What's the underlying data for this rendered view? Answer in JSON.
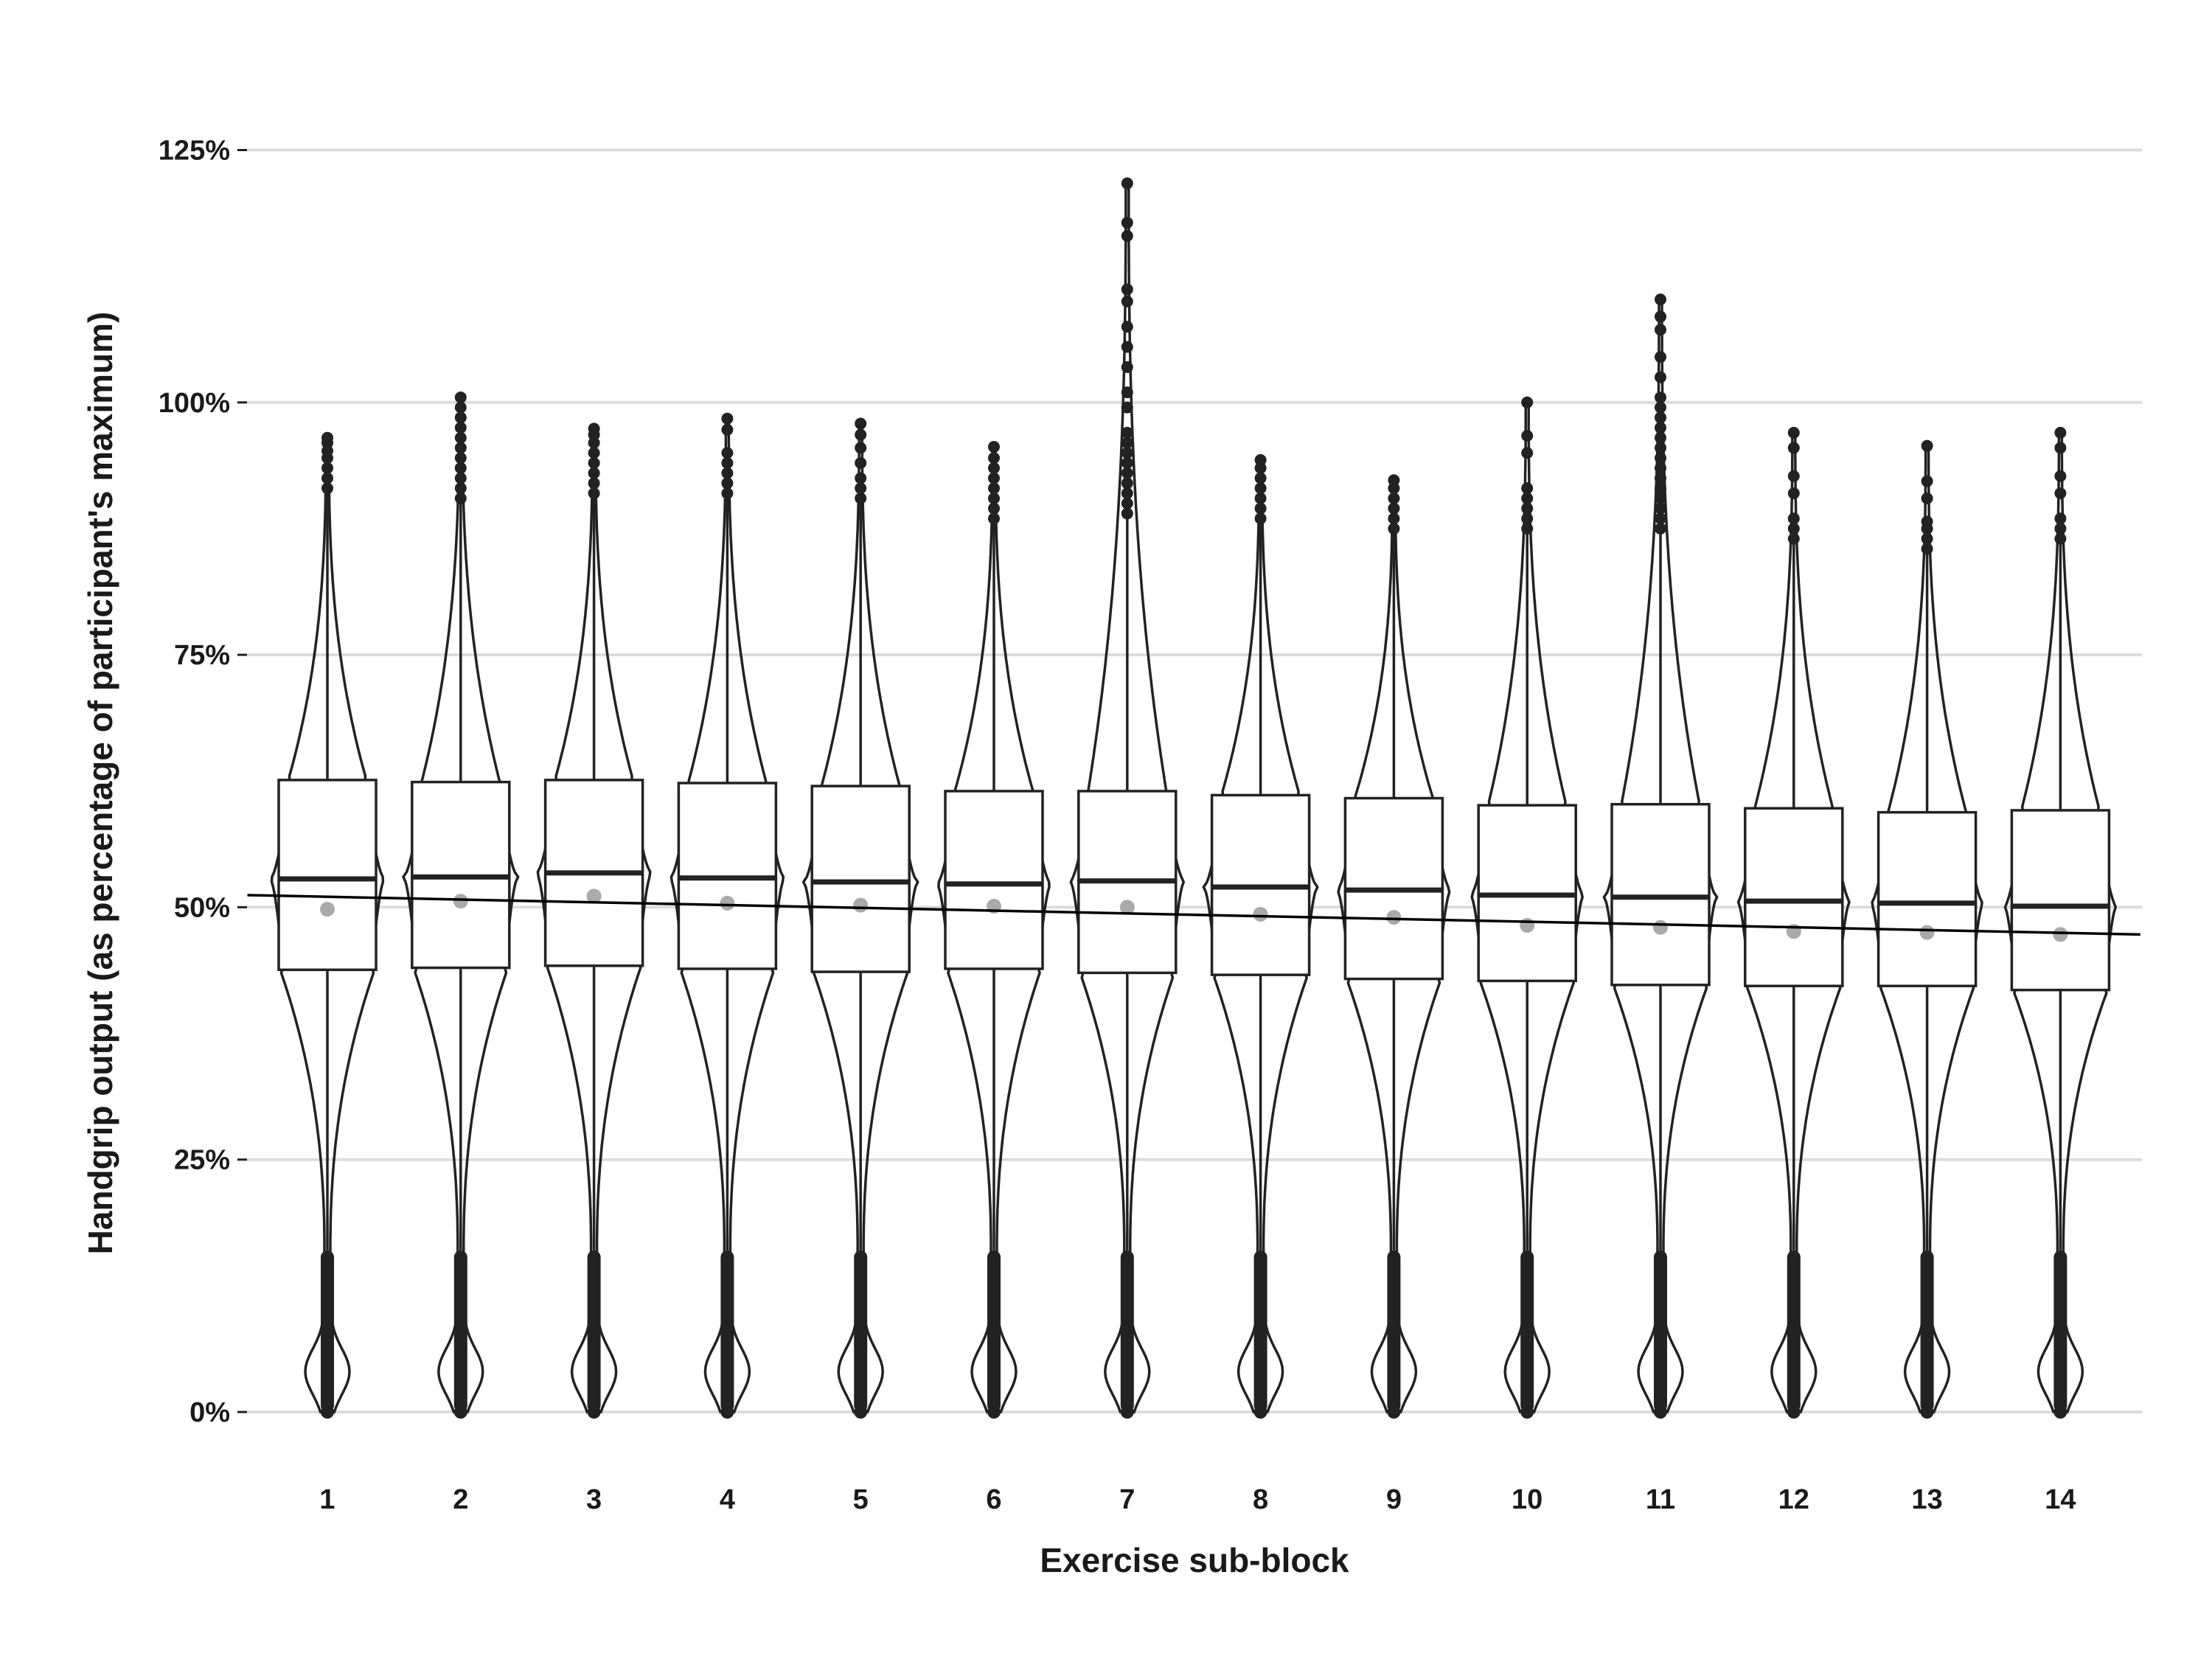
{
  "chart_data": {
    "type": "violin-box",
    "title": "",
    "xlabel": "Exercise sub-block",
    "ylabel": "Handgrip output (as percentage of participant's maximum)",
    "ylim": [
      -4,
      130
    ],
    "y_ticks": [
      {
        "value": 0,
        "label": "0%"
      },
      {
        "value": 25,
        "label": "25%"
      },
      {
        "value": 50,
        "label": "50%"
      },
      {
        "value": 75,
        "label": "75%"
      },
      {
        "value": 100,
        "label": "100%"
      },
      {
        "value": 125,
        "label": "125%"
      }
    ],
    "grid": "horizontal",
    "categories": [
      "1",
      "2",
      "3",
      "4",
      "5",
      "6",
      "7",
      "8",
      "9",
      "10",
      "11",
      "12",
      "13",
      "14"
    ],
    "boxes": [
      {
        "q1": 43.8,
        "median": 52.8,
        "q3": 62.6,
        "mean": 49.8,
        "whisker_high": 91,
        "max": 96.5
      },
      {
        "q1": 44.0,
        "median": 53.0,
        "q3": 62.4,
        "mean": 50.6,
        "whisker_high": 90,
        "max": 100.5
      },
      {
        "q1": 44.2,
        "median": 53.4,
        "q3": 62.6,
        "mean": 51.1,
        "whisker_high": 91,
        "max": 97.4
      },
      {
        "q1": 43.9,
        "median": 52.9,
        "q3": 62.3,
        "mean": 50.4,
        "whisker_high": 91,
        "max": 98.4
      },
      {
        "q1": 43.6,
        "median": 52.5,
        "q3": 62.0,
        "mean": 50.2,
        "whisker_high": 90,
        "max": 97.9
      },
      {
        "q1": 43.9,
        "median": 52.3,
        "q3": 61.5,
        "mean": 50.1,
        "whisker_high": 88,
        "max": 95.6
      },
      {
        "q1": 43.5,
        "median": 52.6,
        "q3": 61.5,
        "mean": 50.0,
        "whisker_high": 89,
        "max": 121.7
      },
      {
        "q1": 43.3,
        "median": 52.0,
        "q3": 61.1,
        "mean": 49.3,
        "whisker_high": 88,
        "max": 94.3
      },
      {
        "q1": 42.9,
        "median": 51.7,
        "q3": 60.8,
        "mean": 49.0,
        "whisker_high": 87,
        "max": 92.3
      },
      {
        "q1": 42.7,
        "median": 51.2,
        "q3": 60.1,
        "mean": 48.2,
        "whisker_high": 87,
        "max": 100.0
      },
      {
        "q1": 42.3,
        "median": 51.0,
        "q3": 60.2,
        "mean": 48.0,
        "whisker_high": 87,
        "max": 110.2
      },
      {
        "q1": 42.2,
        "median": 50.6,
        "q3": 59.8,
        "mean": 47.6,
        "whisker_high": 86,
        "max": 97.0
      },
      {
        "q1": 42.2,
        "median": 50.4,
        "q3": 59.4,
        "mean": 47.5,
        "whisker_high": 85,
        "max": 95.7
      },
      {
        "q1": 41.8,
        "median": 50.1,
        "q3": 59.6,
        "mean": 47.3,
        "whisker_high": 86,
        "max": 97.0
      }
    ],
    "outliers_high": [
      [
        91.5,
        92.5,
        93.5,
        94.5,
        95.2,
        96.0,
        96.5
      ],
      [
        90.5,
        91.5,
        92.5,
        93.5,
        94.5,
        95.5,
        96.5,
        97.5,
        98.5,
        99.5,
        100.5
      ],
      [
        91,
        92,
        93,
        94,
        95,
        96,
        96.8,
        97.4
      ],
      [
        91,
        92,
        93,
        94,
        95,
        97.3,
        98.4
      ],
      [
        90.5,
        91.5,
        92.5,
        94.0,
        95.5,
        96.8,
        97.9
      ],
      [
        88.5,
        89.5,
        90.5,
        91.5,
        92.5,
        93.5,
        94.5,
        95.6
      ],
      [
        89,
        90,
        91,
        92,
        93,
        94,
        95,
        96,
        97,
        99.5,
        101,
        103.5,
        105.5,
        107.5,
        110,
        111.2,
        116.5,
        117.8,
        121.7
      ],
      [
        88.5,
        89.5,
        90.5,
        91.5,
        92.5,
        93.5,
        94.3
      ],
      [
        87.5,
        88.5,
        89.5,
        90.5,
        91.5,
        92.3
      ],
      [
        87.5,
        88.5,
        89.5,
        90.5,
        91.5,
        95.0,
        96.7,
        100.0
      ],
      [
        87.5,
        88.5,
        89.5,
        90.5,
        91.5,
        92.5,
        93.5,
        94.5,
        95.5,
        96.5,
        97.5,
        98.5,
        99.5,
        100.5,
        102.5,
        104.5,
        107.2,
        108.5,
        110.2
      ],
      [
        86.5,
        87.5,
        88.5,
        91.0,
        92.7,
        95.5,
        97.0
      ],
      [
        85.5,
        86.5,
        87.5,
        88.2,
        90.5,
        92.2,
        95.7
      ],
      [
        86.5,
        87.5,
        88.5,
        91.0,
        92.7,
        95.5,
        97.0
      ]
    ],
    "low_outlier_range": [
      0,
      16
    ],
    "trend_line": {
      "x_start": 0.4,
      "y_start": 51.2,
      "x_end": 14.6,
      "y_end": 47.3
    },
    "colors": {
      "ink": "#222222",
      "mean": "#aaaaaa",
      "grid": "#dcdcdc",
      "trend": "#000000"
    }
  }
}
